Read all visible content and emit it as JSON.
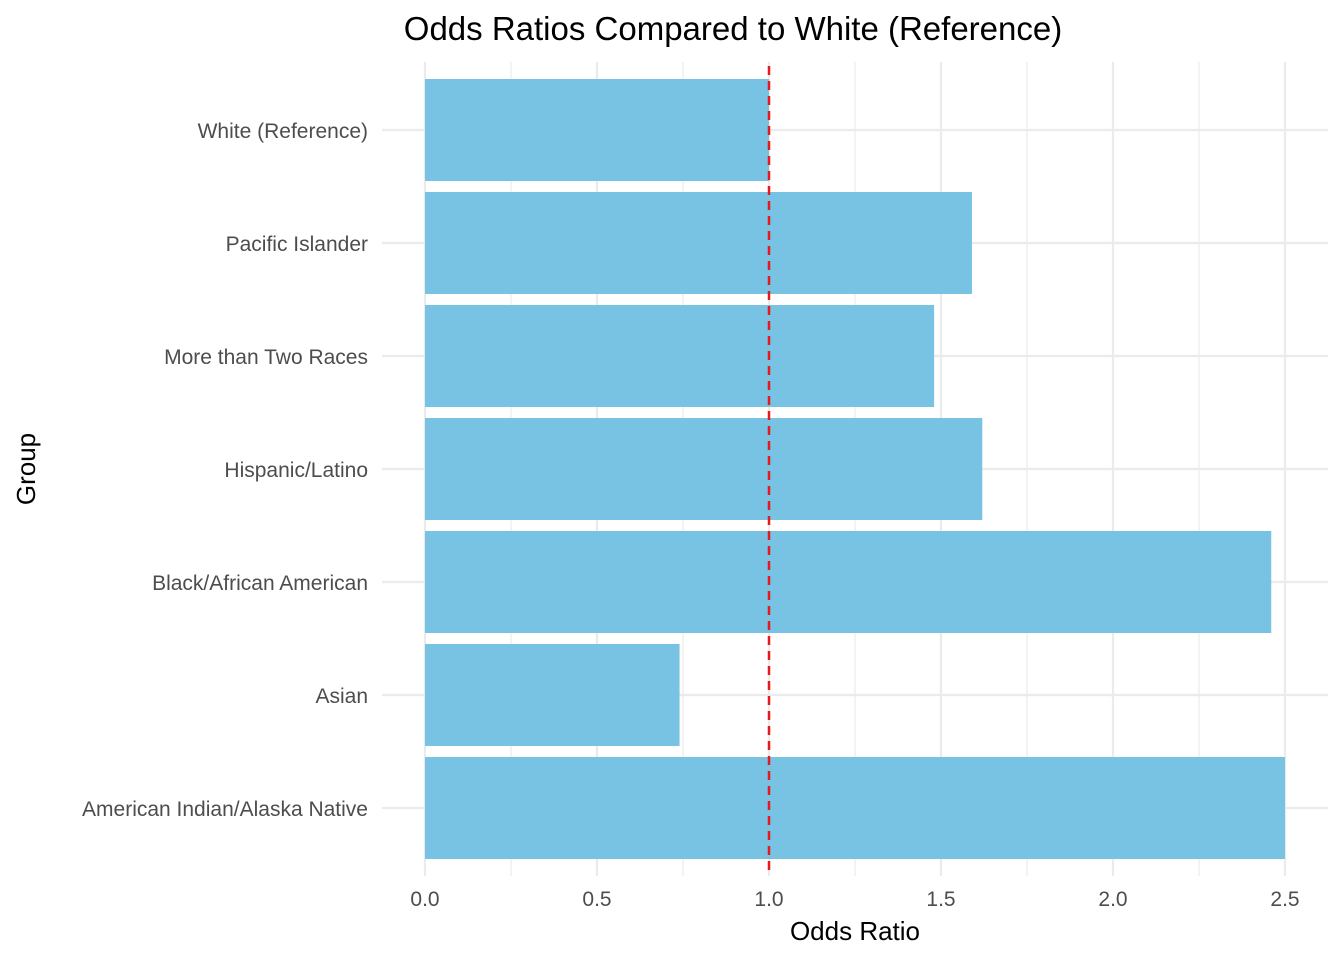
{
  "chart_data": {
    "type": "bar",
    "orientation": "horizontal",
    "title": "Odds Ratios Compared to White (Reference)",
    "xlabel": "Odds Ratio",
    "ylabel": "Group",
    "categories": [
      "American Indian/Alaska Native",
      "Asian",
      "Black/African American",
      "Hispanic/Latino",
      "More than Two Races",
      "Pacific Islander",
      "White (Reference)"
    ],
    "values": [
      2.5,
      0.74,
      2.46,
      1.62,
      1.48,
      1.59,
      1.0
    ],
    "xlim": [
      0,
      2.5
    ],
    "x_ticks": [
      "0.0",
      "0.5",
      "1.0",
      "1.5",
      "2.0",
      "2.5"
    ],
    "x_tick_values": [
      0,
      0.5,
      1.0,
      1.5,
      2.0,
      2.5
    ],
    "reference_line": {
      "value": 1.0,
      "style": "dashed",
      "color": "#e41a1c"
    },
    "bar_color": "#78c2e4",
    "grid": true,
    "grid_color": "#ebebeb",
    "legend": "none"
  }
}
